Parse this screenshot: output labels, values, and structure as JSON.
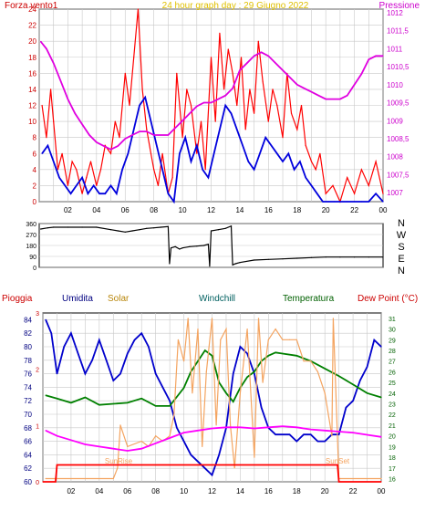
{
  "chart_data": [
    {
      "type": "line",
      "title": "24 hour graph day : 29 Giugno 2022",
      "left_label": "Forza vento1",
      "right_label": "Pressione",
      "left_ticks": [
        0,
        2,
        4,
        6,
        8,
        10,
        12,
        14,
        16,
        18,
        20,
        22,
        24
      ],
      "right_ticks": [
        "1007",
        "1007,5",
        "1008",
        "1008,5",
        "1009",
        "1009,5",
        "1010",
        "1010,5",
        "1011",
        "1011,5",
        "1012"
      ],
      "x_ticks": [
        "02",
        "04",
        "06",
        "08",
        "10",
        "12",
        "14",
        "16",
        "18",
        "20",
        "22",
        "00"
      ],
      "xlim": [
        0,
        24
      ],
      "left_ylim": [
        0,
        24
      ],
      "right_ylim": [
        1006.75,
        1012.1
      ],
      "series": [
        {
          "axis": "left",
          "color": "#ff0000",
          "x": [
            0.2,
            0.5,
            0.8,
            1.0,
            1.3,
            1.6,
            2.0,
            2.3,
            2.6,
            3.0,
            3.3,
            3.6,
            4.0,
            4.3,
            4.6,
            5.0,
            5.3,
            5.6,
            6.0,
            6.3,
            6.6,
            6.9,
            7.2,
            7.5,
            7.8,
            8.0,
            8.3,
            8.6,
            9.0,
            9.3,
            9.6,
            10.0,
            10.3,
            10.6,
            11.0,
            11.3,
            11.6,
            12.0,
            12.3,
            12.6,
            12.9,
            13.2,
            13.5,
            13.8,
            14.1,
            14.4,
            14.7,
            15.0,
            15.3,
            15.6,
            16.0,
            16.3,
            16.6,
            17.0,
            17.3,
            17.6,
            18.0,
            18.3,
            18.6,
            19.0,
            19.3,
            19.6,
            20.0,
            20.5,
            21.0,
            21.5,
            22.0,
            22.5,
            23.0,
            23.5,
            24.0
          ],
          "values": [
            12,
            8,
            14,
            10,
            4,
            6,
            2,
            5,
            4,
            1,
            3,
            5,
            2,
            4,
            7,
            6,
            10,
            8,
            16,
            12,
            18,
            24,
            14,
            9,
            6,
            4,
            2,
            6,
            1,
            3,
            16,
            8,
            14,
            12,
            6,
            10,
            4,
            18,
            10,
            21,
            14,
            19,
            16,
            12,
            18,
            9,
            14,
            11,
            20,
            15,
            10,
            14,
            12,
            8,
            16,
            11,
            9,
            12,
            7,
            5,
            4,
            6,
            1,
            2,
            0,
            3,
            1,
            4,
            2,
            5,
            1
          ]
        },
        {
          "axis": "left",
          "color": "#0000dd",
          "x": [
            0.2,
            0.6,
            1.0,
            1.4,
            1.8,
            2.2,
            2.6,
            3.0,
            3.4,
            3.8,
            4.2,
            4.6,
            5.0,
            5.4,
            5.8,
            6.2,
            6.6,
            7.0,
            7.4,
            7.8,
            8.2,
            8.6,
            9.0,
            9.4,
            9.8,
            10.2,
            10.6,
            11.0,
            11.4,
            11.8,
            12.2,
            12.6,
            13.0,
            13.4,
            13.8,
            14.2,
            14.6,
            15.0,
            15.4,
            15.8,
            16.2,
            16.6,
            17.0,
            17.4,
            17.8,
            18.2,
            18.6,
            19.0,
            19.4,
            19.8,
            20.2,
            20.6,
            21.0,
            21.5,
            22.0,
            22.5,
            23.0,
            23.5,
            24.0
          ],
          "values": [
            6,
            7,
            5,
            3,
            2,
            1,
            2,
            3,
            1,
            2,
            1,
            1,
            2,
            1,
            4,
            6,
            9,
            12,
            13,
            10,
            7,
            4,
            1,
            0,
            6,
            8,
            5,
            7,
            4,
            3,
            6,
            9,
            12,
            11,
            9,
            7,
            5,
            4,
            6,
            8,
            7,
            6,
            5,
            6,
            4,
            5,
            3,
            2,
            1,
            0,
            0,
            0,
            0,
            0,
            0,
            0,
            0,
            1,
            0
          ]
        },
        {
          "axis": "right",
          "color": "#e000e0",
          "x": [
            0.1,
            0.5,
            1.0,
            1.5,
            2.0,
            2.5,
            3.0,
            3.5,
            4.0,
            4.5,
            5.0,
            5.5,
            6.0,
            6.5,
            7.0,
            7.5,
            8.0,
            8.5,
            9.0,
            9.5,
            10.0,
            10.5,
            11.0,
            11.5,
            12.0,
            12.5,
            13.0,
            13.5,
            14.0,
            14.5,
            15.0,
            15.5,
            16.0,
            16.5,
            17.0,
            17.5,
            18.0,
            18.5,
            19.0,
            19.5,
            20.0,
            20.5,
            21.0,
            21.5,
            22.0,
            22.5,
            23.0,
            23.5,
            24.0
          ],
          "values": [
            1011.2,
            1011.0,
            1010.6,
            1010.1,
            1009.6,
            1009.2,
            1008.9,
            1008.6,
            1008.4,
            1008.3,
            1008.2,
            1008.3,
            1008.5,
            1008.6,
            1008.7,
            1008.7,
            1008.6,
            1008.6,
            1008.6,
            1008.8,
            1009.0,
            1009.2,
            1009.4,
            1009.5,
            1009.5,
            1009.6,
            1009.7,
            1009.9,
            1010.4,
            1010.6,
            1010.8,
            1010.9,
            1010.8,
            1010.6,
            1010.4,
            1010.2,
            1010.0,
            1009.9,
            1009.8,
            1009.7,
            1009.6,
            1009.6,
            1009.6,
            1009.7,
            1010.0,
            1010.3,
            1010.7,
            1010.8,
            1010.8
          ]
        }
      ]
    },
    {
      "type": "line",
      "y_ticks": [
        "N",
        "W",
        "S",
        "E",
        "N"
      ],
      "left_ticks": [
        0,
        90,
        180,
        270,
        360
      ],
      "left_values_text": [
        "360",
        "270",
        "180",
        "90",
        "0"
      ],
      "xlim": [
        0,
        24
      ],
      "ylim": [
        0,
        360
      ],
      "series": [
        {
          "color": "#000000",
          "x": [
            0.1,
            0.6,
            1.0,
            2.0,
            3.0,
            4.0,
            5.0,
            5.5,
            6.0,
            6.5,
            7.0,
            7.5,
            8.0,
            8.5,
            9.0,
            9.1,
            9.2,
            9.5,
            9.8,
            10.0,
            10.5,
            11.0,
            11.5,
            11.8,
            11.9,
            12.0,
            12.5,
            13.0,
            13.4,
            13.5,
            13.7,
            14.0,
            15.0,
            16.0,
            17.0,
            18.0,
            19.0,
            20.0,
            21.0,
            22.0,
            23.0,
            24.0
          ],
          "values": [
            315,
            325,
            330,
            330,
            330,
            330,
            310,
            300,
            290,
            300,
            310,
            320,
            325,
            330,
            335,
            30,
            160,
            170,
            150,
            160,
            170,
            175,
            180,
            190,
            10,
            300,
            310,
            320,
            340,
            20,
            30,
            40,
            60,
            65,
            70,
            75,
            80,
            85,
            85,
            85,
            85,
            85
          ]
        }
      ]
    },
    {
      "type": "line",
      "legend": [
        "Pioggia",
        "Umidita",
        "Solar",
        "Windchill",
        "Temperatura",
        "Dew Point (°C)"
      ],
      "left_ticks": [
        60,
        62,
        64,
        66,
        68,
        70,
        72,
        74,
        76,
        78,
        80,
        82,
        84
      ],
      "rain_ticks": [
        "0",
        "1",
        "2",
        "3"
      ],
      "right_ticks": [
        16,
        17,
        18,
        19,
        20,
        21,
        22,
        23,
        24,
        25,
        26,
        27,
        28,
        29,
        30,
        31
      ],
      "x_ticks": [
        "02",
        "04",
        "06",
        "08",
        "10",
        "12",
        "14",
        "16",
        "18",
        "20",
        "22",
        "00"
      ],
      "annotations": [
        "SunRise",
        "SunSet"
      ],
      "xlim": [
        0,
        24
      ],
      "left_ylim": [
        60,
        85
      ],
      "right_ylim": [
        15.7,
        31.5
      ],
      "series": [
        {
          "name": "Umidita",
          "axis": "left",
          "color": "#0000cc",
          "x": [
            0.2,
            0.6,
            1.0,
            1.5,
            2.0,
            2.5,
            3.0,
            3.5,
            4.0,
            4.5,
            5.0,
            5.5,
            6.0,
            6.5,
            7.0,
            7.5,
            8.0,
            8.5,
            9.0,
            9.5,
            10.0,
            10.5,
            11.0,
            11.5,
            12.0,
            12.5,
            13.0,
            13.5,
            14.0,
            14.5,
            15.0,
            15.5,
            16.0,
            16.5,
            17.0,
            17.5,
            18.0,
            18.5,
            19.0,
            19.5,
            20.0,
            20.5,
            21.0,
            21.5,
            22.0,
            22.5,
            23.0,
            23.5,
            24.0
          ],
          "values": [
            84,
            82,
            76,
            80,
            82,
            79,
            76,
            78,
            81,
            78,
            75,
            76,
            79,
            81,
            82,
            80,
            76,
            74,
            72,
            68,
            66,
            64,
            63,
            62,
            61,
            64,
            68,
            76,
            80,
            79,
            76,
            71,
            68,
            67,
            67,
            67,
            66,
            67,
            67,
            66,
            66,
            67,
            67,
            71,
            72,
            75,
            77,
            81,
            80
          ]
        },
        {
          "name": "Temperatura",
          "axis": "right",
          "color": "#008000",
          "x": [
            0.2,
            1.0,
            2.0,
            3.0,
            4.0,
            5.0,
            6.0,
            7.0,
            8.0,
            9.0,
            10.0,
            10.5,
            11.0,
            11.5,
            12.0,
            12.5,
            13.0,
            13.5,
            14.0,
            14.5,
            15.0,
            15.5,
            16.0,
            16.5,
            17.0,
            18.0,
            19.0,
            20.0,
            21.0,
            22.0,
            23.0,
            24.0
          ],
          "values": [
            23.8,
            23.5,
            23.1,
            23.6,
            22.9,
            23.0,
            23.1,
            23.5,
            22.8,
            22.8,
            24.5,
            26.0,
            27.0,
            28.0,
            27.5,
            25.0,
            24.0,
            23.2,
            24.5,
            25.5,
            26.0,
            27.0,
            27.5,
            27.8,
            27.7,
            27.5,
            27.0,
            26.3,
            25.6,
            24.8,
            24.0,
            23.6
          ]
        },
        {
          "name": "Solar",
          "axis": "right",
          "color": "#f4a460",
          "x": [
            0.2,
            3.0,
            5.0,
            5.3,
            5.5,
            6.0,
            7.0,
            7.5,
            8.0,
            8.5,
            9.0,
            9.3,
            9.6,
            10.0,
            10.3,
            10.6,
            11.0,
            11.3,
            11.6,
            12.0,
            12.3,
            12.6,
            13.0,
            13.3,
            13.6,
            14.0,
            14.5,
            15.0,
            15.3,
            15.6,
            16.0,
            16.5,
            17.0,
            17.5,
            18.0,
            18.5,
            19.0,
            19.5,
            20.0,
            20.5,
            20.6,
            21.0,
            24.0
          ],
          "values": [
            16,
            16,
            16,
            17,
            21,
            19,
            19.5,
            19.0,
            20.0,
            19.5,
            20,
            22,
            29,
            27,
            31,
            24,
            30,
            19,
            26,
            31,
            21,
            29,
            30,
            21,
            17,
            24,
            30,
            18,
            31,
            25,
            29,
            30,
            29,
            29,
            29,
            27,
            27,
            26,
            24,
            20,
            31,
            16,
            16
          ]
        },
        {
          "name": "Dew Point (°C)",
          "axis": "right",
          "color": "#ff00ff",
          "x": [
            0.2,
            1.0,
            2.0,
            3.0,
            4.0,
            5.0,
            6.0,
            7.0,
            8.0,
            9.0,
            10.0,
            11.0,
            12.0,
            13.0,
            14.0,
            15.0,
            16.0,
            17.0,
            18.0,
            19.0,
            20.0,
            21.0,
            22.0,
            23.0,
            24.0
          ],
          "values": [
            20.5,
            20.0,
            19.6,
            19.2,
            19.0,
            18.8,
            18.6,
            18.8,
            19.3,
            19.8,
            20.3,
            20.5,
            20.7,
            20.8,
            20.8,
            20.7,
            20.8,
            20.9,
            20.8,
            20.6,
            20.5,
            20.4,
            20.3,
            20.1,
            19.9
          ]
        },
        {
          "name": "Pioggia",
          "axis": "rain",
          "color": "#ff0000",
          "x": [
            0.0,
            0.9,
            1.0,
            20.9,
            21.0,
            24.0
          ],
          "values": [
            0,
            0,
            0.3,
            0.3,
            0,
            0
          ]
        }
      ]
    }
  ]
}
